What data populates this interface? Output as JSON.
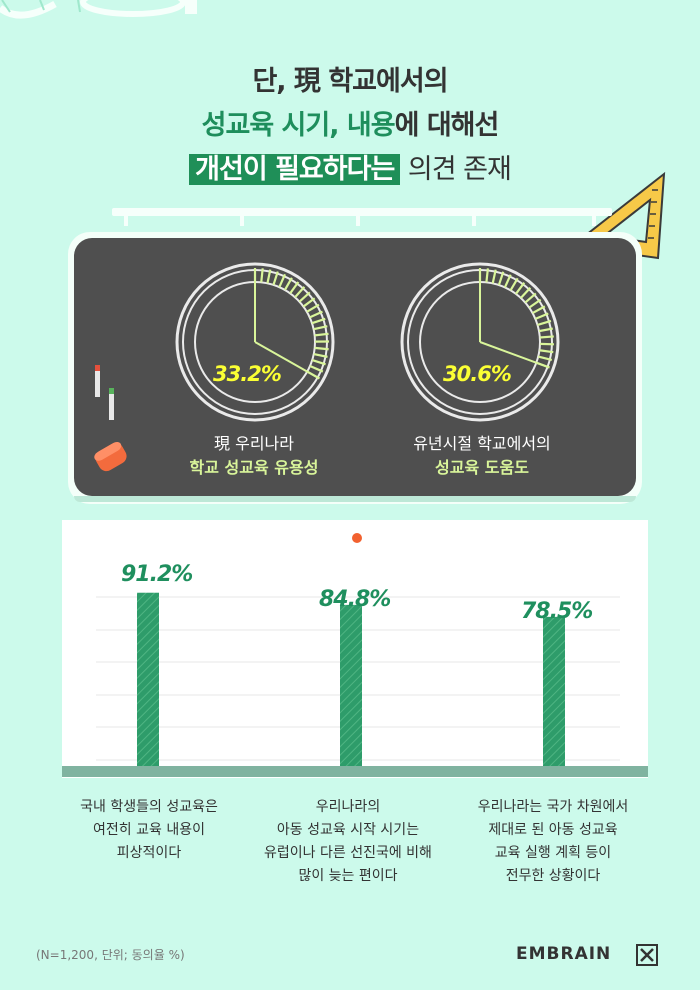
{
  "title": {
    "line1": "단, 現 학교에서의",
    "line2_green": "성교육 시기, 내용",
    "line2_rest": "에 대해선",
    "line3_highlight": "개선이 필요하다는",
    "line3_rest": " 의견 존재"
  },
  "gauges": [
    {
      "value": 33.2,
      "label": "33.2%",
      "caption_line1": "現 우리나라",
      "caption_line2": "학교 성교육 유용성"
    },
    {
      "value": 30.6,
      "label": "30.6%",
      "caption_line1": "유년시절 학교에서의",
      "caption_line2": "성교육 도움도"
    }
  ],
  "chart_data": {
    "type": "bar",
    "categories": [
      "국내 학생들의 성교육은 여전히 교육 내용이 피상적이다",
      "우리나라의 아동 성교육 시작 시기는 유럽이나 다른 선진국에 비해 많이 늦는 편이다",
      "우리나라는 국가 차원에서 제대로 된 아동 성교육 교육 실행 계획 등이 전무한 상황이다"
    ],
    "values": [
      91.2,
      84.8,
      78.5
    ],
    "value_labels": [
      "91.2%",
      "84.8%",
      "78.5%"
    ],
    "ylim": [
      0,
      100
    ],
    "bar_color": "#2e9c6a"
  },
  "descriptions": [
    [
      "국내 학생들의 성교육은",
      "여전히 교육 내용이",
      "피상적이다"
    ],
    [
      "우리나라의",
      "아동 성교육 시작 시기는",
      "유럽이나 다른 선진국에 비해",
      "많이 늦는 편이다"
    ],
    [
      "우리나라는 국가 차원에서",
      "제대로 된 아동 성교육",
      "교육 실행 계획 등이",
      "전무한 상황이다"
    ]
  ],
  "footnote": "(N=1,200, 단위; 동의율 %)",
  "brand": "EMBRAIN",
  "colors": {
    "background": "#ccfaeb",
    "board": "#4f4f4f",
    "accent_green": "#1f8f58",
    "gauge_fill": "#d9f59a",
    "percent_yellow": "#fbff34"
  }
}
